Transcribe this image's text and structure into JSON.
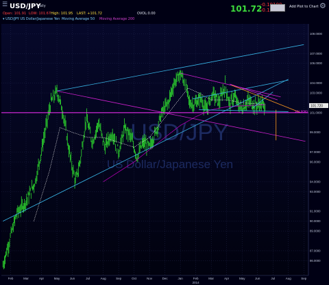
{
  "header": {
    "symbol": "USD/JPY",
    "interval": "Daily",
    "price": "101.72",
    "change": "-0.19100",
    "change_pct": "-0.19%",
    "add_plot": "Add Plot to Chart",
    "ohlc": {
      "open_label": "Open:",
      "open": "101.91",
      "low_label": "LOW:",
      "low": "101.67",
      "high_label": "High:",
      "high": "101.95",
      "last_label": "LAST:",
      "last": "+101.72",
      "vol_label": "OVOL:",
      "vol": "0.00"
    },
    "legend": [
      "USD/JPY US Dollar/Japanese Yen",
      "Moving Average 50",
      "Moving Average 200"
    ]
  },
  "watermark": {
    "symbol": "USD/JPY",
    "name": "US Dollar/Japanese Yen"
  },
  "colors": {
    "background": "#000014",
    "bars": "#2fe02f",
    "ma50": "#e8e8e8",
    "ma200": "#b000b0",
    "cyan_lines": "#38b6e8",
    "magenta_lines": "#d020d0",
    "orange_lines": "#ff9a1e",
    "horizontal": "#ff30ff",
    "watermark": "#1c2a60",
    "grid": "#232850",
    "axis_text": "#c0c8dc"
  },
  "chart_data": {
    "type": "candlestick",
    "title": "USD/JPY",
    "subtitle": "US Dollar/Japanese Yen",
    "xlabel": "",
    "ylabel": "",
    "ylim": [
      84.5,
      110.0
    ],
    "grid": true,
    "x_ticks": [
      "Feb",
      "Mar",
      "Apr",
      "May",
      "Jun",
      "Jul",
      "Aug",
      "Sep",
      "Oct",
      "Nov",
      "Dec",
      "Jan",
      "Feb",
      "Mar",
      "Apr",
      "May",
      "Jun",
      "Jul",
      "Aug",
      "Sep"
    ],
    "x_year_label": "2014",
    "y_ticks": [
      "109.0000",
      "107.0000",
      "106.0000",
      "104.0000",
      "103.0000",
      "101.0000",
      "99.0000",
      "97.0000",
      "96.0000",
      "94.0000",
      "93.0000",
      "91.0000",
      "90.0000",
      "89.0000",
      "87.0000",
      "86.0000"
    ],
    "last_price_label": "101.720",
    "hline_label": "101.0000",
    "x_month_index_range": [
      -0.6,
      19.3
    ],
    "price_path": [
      [
        -0.5,
        85.5
      ],
      [
        0.0,
        88.5
      ],
      [
        0.4,
        90.8
      ],
      [
        1.0,
        92.0
      ],
      [
        1.6,
        94.0
      ],
      [
        2.1,
        98.0
      ],
      [
        2.6,
        102.0
      ],
      [
        3.0,
        103.2
      ],
      [
        3.4,
        101.0
      ],
      [
        3.8,
        97.0
      ],
      [
        4.2,
        94.0
      ],
      [
        4.5,
        96.0
      ],
      [
        4.9,
        100.5
      ],
      [
        5.3,
        98.0
      ],
      [
        5.7,
        100.0
      ],
      [
        6.1,
        97.5
      ],
      [
        6.6,
        99.0
      ],
      [
        7.0,
        97.0
      ],
      [
        7.4,
        99.5
      ],
      [
        7.8,
        98.5
      ],
      [
        8.2,
        96.5
      ],
      [
        8.6,
        98.0
      ],
      [
        9.0,
        97.5
      ],
      [
        9.4,
        99.0
      ],
      [
        9.8,
        101.0
      ],
      [
        10.2,
        102.0
      ],
      [
        10.6,
        104.0
      ],
      [
        11.0,
        105.0
      ],
      [
        11.3,
        104.0
      ],
      [
        11.6,
        102.0
      ],
      [
        11.9,
        101.8
      ],
      [
        12.3,
        102.5
      ],
      [
        12.7,
        101.2
      ],
      [
        13.1,
        103.0
      ],
      [
        13.5,
        102.0
      ],
      [
        13.9,
        103.8
      ],
      [
        14.2,
        101.8
      ],
      [
        14.5,
        102.7
      ],
      [
        14.8,
        101.6
      ],
      [
        15.0,
        101.4
      ],
      [
        15.4,
        102.2
      ],
      [
        15.8,
        101.7
      ],
      [
        16.2,
        101.9
      ],
      [
        16.5,
        101.72
      ]
    ],
    "series": [
      {
        "name": "Moving Average 50",
        "x": [
          1.5,
          2.5,
          3.2,
          4.0,
          5.0,
          6.0,
          7.0,
          8.0,
          9.0,
          10.0,
          11.0,
          11.5,
          12.2,
          13.0,
          14.0,
          15.0,
          16.0,
          16.5
        ],
        "values": [
          90.0,
          95.0,
          99.5,
          99.0,
          98.5,
          98.5,
          98.0,
          97.5,
          98.5,
          100.5,
          102.5,
          103.5,
          103.0,
          102.3,
          102.3,
          102.0,
          101.9,
          101.8
        ]
      },
      {
        "name": "Moving Average 200",
        "x": [
          6.0,
          8.0,
          10.0,
          11.0,
          12.0,
          13.0,
          14.0,
          15.0,
          16.5
        ],
        "values": [
          94.0,
          96.0,
          98.5,
          99.7,
          100.6,
          101.3,
          101.6,
          101.7,
          101.8
        ]
      }
    ],
    "annotations": {
      "cyan_lines": [
        {
          "from": [
            3.0,
            103.2
          ],
          "to": [
            19.0,
            107.9
          ]
        },
        {
          "from": [
            -0.5,
            90.0
          ],
          "to": [
            18.0,
            104.4
          ]
        },
        {
          "from": [
            12.2,
            101.3
          ],
          "to": [
            18.0,
            101.1
          ]
        },
        {
          "from": [
            11.8,
            102.4
          ],
          "to": [
            18.0,
            104.3
          ]
        },
        {
          "from": [
            15.7,
            101.5
          ],
          "to": [
            17.0,
            103.1
          ]
        }
      ],
      "magenta_lines": [
        {
          "from": [
            3.0,
            103.2
          ],
          "to": [
            19.1,
            98.1
          ]
        },
        {
          "from": [
            11.0,
            105.0
          ],
          "to": [
            17.5,
            102.6
          ]
        },
        {
          "from": [
            14.2,
            103.9
          ],
          "to": [
            17.3,
            102.3
          ]
        }
      ],
      "orange_lines": [
        {
          "from": [
            14.3,
            103.8
          ],
          "to": [
            18.8,
            101.0
          ]
        },
        {
          "from": [
            17.2,
            101.3
          ],
          "to": [
            17.2,
            98.2
          ]
        }
      ],
      "horizontal_line": 101.0
    }
  }
}
